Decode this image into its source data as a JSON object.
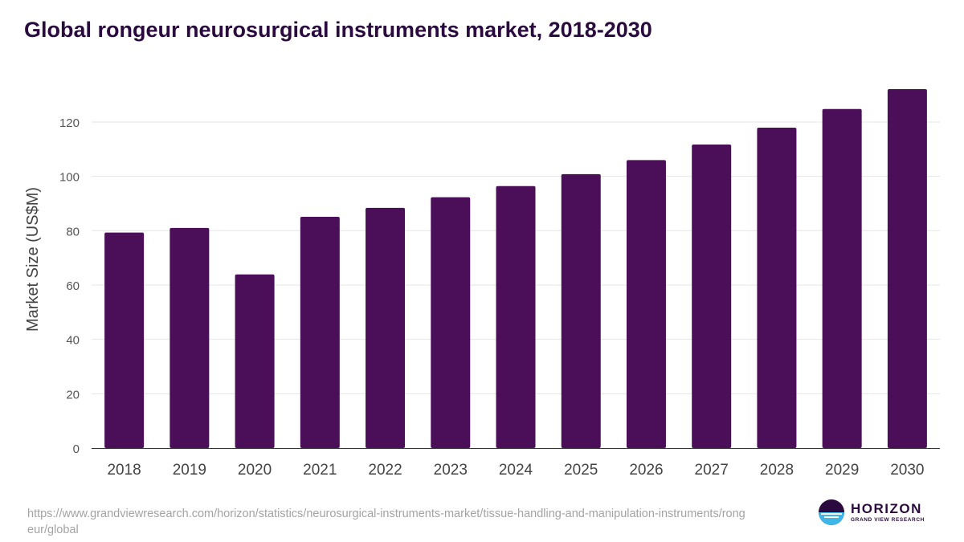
{
  "header": {
    "title": "Global rongeur neurosurgical instruments market, 2018-2030"
  },
  "chart_data": {
    "type": "bar",
    "title": "Global rongeur neurosurgical instruments market, 2018-2030",
    "xlabel": "",
    "ylabel": "Market Size (US$M)",
    "categories": [
      "2018",
      "2019",
      "2020",
      "2021",
      "2022",
      "2023",
      "2024",
      "2025",
      "2026",
      "2027",
      "2028",
      "2029",
      "2030"
    ],
    "values": [
      79.3,
      81.0,
      63.9,
      85.1,
      88.4,
      92.3,
      96.4,
      100.8,
      106.0,
      111.7,
      117.9,
      124.8,
      132.1
    ],
    "yticks": [
      0,
      20,
      40,
      60,
      80,
      100,
      120
    ],
    "ylim": [
      0,
      132.1
    ],
    "grid": true,
    "bar_color": "#4b0f5a"
  },
  "footer": {
    "source_url": "https://www.grandviewresearch.com/horizon/statistics/neurosurgical-instruments-market/tissue-handling-and-manipulation-instruments/rongeur/global",
    "logo": {
      "name": "HORIZON",
      "subtitle": "GRAND VIEW RESEARCH",
      "icon": "horizon-logo-icon",
      "colors": {
        "dark": "#2b0b3f",
        "light": "#3fb6e8"
      }
    }
  }
}
